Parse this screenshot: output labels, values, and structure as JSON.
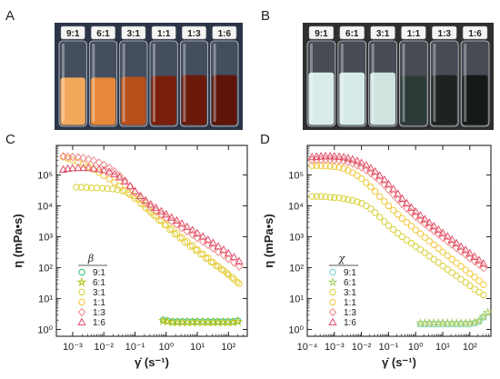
{
  "panels": {
    "A": {
      "label": "A",
      "vials": [
        {
          "label": "9:1",
          "liquid": "#f2a85a",
          "fill": 0.57
        },
        {
          "label": "6:1",
          "liquid": "#e7873a",
          "fill": 0.57
        },
        {
          "label": "3:1",
          "liquid": "#b8501c",
          "fill": 0.58
        },
        {
          "label": "1:1",
          "liquid": "#7a1f0c",
          "fill": 0.59
        },
        {
          "label": "1:3",
          "liquid": "#6b1a0a",
          "fill": 0.6
        },
        {
          "label": "1:6",
          "liquid": "#5e1508",
          "fill": 0.6
        }
      ],
      "background": "#2c3548"
    },
    "B": {
      "label": "B",
      "vials": [
        {
          "label": "9:1",
          "liquid": "#d9ecea",
          "fill": 0.63
        },
        {
          "label": "6:1",
          "liquid": "#d6ebe7",
          "fill": 0.63
        },
        {
          "label": "3:1",
          "liquid": "#cfe4de",
          "fill": 0.63
        },
        {
          "label": "1:1",
          "liquid": "#2c3a37",
          "fill": 0.59
        },
        {
          "label": "1:3",
          "liquid": "#1c2320",
          "fill": 0.6
        },
        {
          "label": "1:6",
          "liquid": "#151a18",
          "fill": 0.6
        }
      ],
      "background": "#2f2f2f"
    }
  },
  "chart_data": [
    {
      "panel": "C",
      "type": "scatter",
      "xlabel": "γ̇ (s⁻¹)",
      "ylabel": "η (mPa•s)",
      "xscale": "log",
      "yscale": "log",
      "xlim": [
        0.0003,
        400
      ],
      "ylim": [
        0.6,
        900000
      ],
      "xticks": [
        {
          "v": 0.001,
          "label": "10⁻³"
        },
        {
          "v": 0.01,
          "label": "10⁻²"
        },
        {
          "v": 0.1,
          "label": "10⁻¹"
        },
        {
          "v": 1,
          "label": "10⁰"
        },
        {
          "v": 10,
          "label": "10¹"
        },
        {
          "v": 100,
          "label": "10²"
        }
      ],
      "yticks": [
        {
          "v": 1,
          "label": "10⁰"
        },
        {
          "v": 10,
          "label": "10¹"
        },
        {
          "v": 100,
          "label": "10²"
        },
        {
          "v": 1000,
          "label": "10³"
        },
        {
          "v": 10000,
          "label": "10⁴"
        },
        {
          "v": 100000,
          "label": "10⁵"
        }
      ],
      "legend_title": "β",
      "legend_position": "lower-left",
      "series": [
        {
          "name": "9:1",
          "marker": "circle",
          "color": "#2fbf71",
          "x": [
            0.8,
            1.1,
            1.6,
            2.3,
            3.3,
            4.8,
            7,
            10,
            15,
            22,
            32,
            46,
            66,
            95,
            140,
            200
          ],
          "y": [
            2.0,
            1.9,
            1.8,
            1.8,
            1.8,
            1.8,
            1.8,
            1.8,
            1.8,
            1.8,
            1.8,
            1.8,
            1.8,
            1.8,
            1.8,
            1.9
          ]
        },
        {
          "name": "6:1",
          "marker": "star",
          "color": "#b5c41a",
          "x": [
            0.8,
            1.1,
            1.6,
            2.3,
            3.3,
            4.8,
            7,
            10,
            15,
            22,
            32,
            46,
            66,
            95,
            140,
            200
          ],
          "y": [
            1.9,
            1.8,
            1.7,
            1.7,
            1.7,
            1.7,
            1.7,
            1.7,
            1.7,
            1.7,
            1.7,
            1.7,
            1.7,
            1.7,
            1.7,
            1.8
          ]
        },
        {
          "name": "3:1",
          "marker": "circle",
          "color": "#d8d23a",
          "x": [
            0.0013,
            0.0019,
            0.0028,
            0.004,
            0.006,
            0.009,
            0.013,
            0.019,
            0.028,
            0.04,
            0.06,
            0.09,
            0.13,
            0.19,
            0.28,
            0.4,
            0.6,
            0.9,
            1.3,
            1.9,
            2.8,
            4,
            6,
            9,
            13,
            19,
            28,
            40,
            60,
            90,
            130,
            190
          ],
          "y": [
            40000,
            40000,
            39000,
            38000,
            38000,
            37000,
            36000,
            35000,
            33000,
            30000,
            26000,
            21000,
            16000,
            11000,
            7500,
            5000,
            3400,
            2400,
            1700,
            1200,
            900,
            650,
            480,
            360,
            270,
            200,
            150,
            115,
            88,
            66,
            48,
            34
          ]
        },
        {
          "name": "1:1",
          "marker": "circle",
          "color": "#f0c93a",
          "x": [
            0.0005,
            0.0007,
            0.001,
            0.0015,
            0.0022,
            0.0032,
            0.0047,
            0.007,
            0.01,
            0.015,
            0.022,
            0.032,
            0.047,
            0.07,
            0.1,
            0.15,
            0.22,
            0.32,
            0.47,
            0.7,
            1,
            1.5,
            2.2,
            3.2,
            4.7,
            7,
            10,
            15,
            22,
            32,
            47,
            70,
            100,
            150,
            220
          ],
          "y": [
            380000,
            340000,
            300000,
            260000,
            220000,
            185000,
            150000,
            120000,
            95000,
            74000,
            57000,
            43000,
            32000,
            23000,
            17000,
            12000,
            8500,
            6200,
            4500,
            3300,
            2400,
            1800,
            1300,
            950,
            700,
            520,
            380,
            280,
            205,
            150,
            110,
            80,
            58,
            42,
            30
          ]
        },
        {
          "name": "1:3",
          "marker": "diamond",
          "color": "#f08a8a",
          "x": [
            0.0005,
            0.0007,
            0.001,
            0.0015,
            0.0022,
            0.0032,
            0.0047,
            0.007,
            0.01,
            0.015,
            0.022,
            0.032,
            0.047,
            0.07,
            0.1,
            0.15,
            0.22,
            0.32,
            0.47,
            0.7,
            1,
            1.5,
            2.2,
            3.2,
            4.7,
            7,
            10,
            15,
            22,
            32,
            47,
            70,
            100,
            150,
            220
          ],
          "y": [
            400000,
            390000,
            380000,
            370000,
            350000,
            320000,
            290000,
            250000,
            210000,
            170000,
            130000,
            95000,
            65000,
            42000,
            27000,
            18000,
            12500,
            9000,
            6800,
            5200,
            4100,
            3200,
            2500,
            1950,
            1500,
            1170,
            900,
            700,
            540,
            420,
            320,
            250,
            190,
            145,
            110
          ]
        },
        {
          "name": "1:6",
          "marker": "triangle",
          "color": "#e0506a",
          "x": [
            0.0005,
            0.0007,
            0.001,
            0.0015,
            0.0022,
            0.0032,
            0.0047,
            0.007,
            0.01,
            0.015,
            0.022,
            0.032,
            0.047,
            0.07,
            0.1,
            0.15,
            0.22,
            0.32,
            0.47,
            0.7,
            1,
            1.5,
            2.2,
            3.2,
            4.7,
            7,
            10,
            15,
            22,
            32,
            47,
            70,
            100,
            150,
            220
          ],
          "y": [
            150000,
            160000,
            165000,
            170000,
            170000,
            168000,
            163000,
            155000,
            143000,
            126000,
            106000,
            84000,
            62000,
            44000,
            30000,
            21000,
            15000,
            11200,
            8600,
            6700,
            5300,
            4200,
            3350,
            2650,
            2100,
            1650,
            1300,
            1020,
            800,
            630,
            490,
            380,
            290,
            220,
            160
          ]
        }
      ]
    },
    {
      "panel": "D",
      "type": "scatter",
      "xlabel": "γ̇ (s⁻¹)",
      "ylabel": "η (mPa•s)",
      "xscale": "log",
      "yscale": "log",
      "xlim": [
        0.0001,
        600
      ],
      "ylim": [
        0.6,
        900000
      ],
      "xticks": [
        {
          "v": 0.0001,
          "label": "10⁻⁴"
        },
        {
          "v": 0.001,
          "label": "10⁻³"
        },
        {
          "v": 0.01,
          "label": "10⁻²"
        },
        {
          "v": 0.1,
          "label": "10⁻¹"
        },
        {
          "v": 1,
          "label": "10⁰"
        },
        {
          "v": 10,
          "label": "10¹"
        },
        {
          "v": 100,
          "label": "10²"
        }
      ],
      "yticks": [
        {
          "v": 1,
          "label": "10⁰"
        },
        {
          "v": 10,
          "label": "10¹"
        },
        {
          "v": 100,
          "label": "10²"
        },
        {
          "v": 1000,
          "label": "10³"
        },
        {
          "v": 10000,
          "label": "10⁴"
        },
        {
          "v": 100000,
          "label": "10⁵"
        }
      ],
      "legend_title": "χ",
      "legend_position": "lower-left",
      "series": [
        {
          "name": "9:1",
          "marker": "circle",
          "color": "#6fd3c7",
          "x": [
            1.5,
            2.2,
            3.2,
            4.7,
            7,
            10,
            15,
            22,
            32,
            47,
            70,
            100,
            150,
            220,
            320
          ],
          "y": [
            1.5,
            1.5,
            1.5,
            1.5,
            1.5,
            1.5,
            1.5,
            1.5,
            1.5,
            1.5,
            1.5,
            1.5,
            1.6,
            1.8,
            2.5
          ]
        },
        {
          "name": "6:1",
          "marker": "star",
          "color": "#a9d06a",
          "x": [
            1.5,
            2.2,
            3.2,
            4.7,
            7,
            10,
            15,
            22,
            32,
            47,
            70,
            100,
            150,
            220,
            320,
            460
          ],
          "y": [
            1.6,
            1.6,
            1.6,
            1.6,
            1.6,
            1.6,
            1.6,
            1.6,
            1.6,
            1.6,
            1.6,
            1.6,
            1.7,
            1.9,
            2.6,
            3.5
          ]
        },
        {
          "name": "3:1",
          "marker": "circle",
          "color": "#d8d23a",
          "x": [
            0.00015,
            0.00022,
            0.00032,
            0.00047,
            0.0007,
            0.001,
            0.0015,
            0.0022,
            0.0032,
            0.0047,
            0.007,
            0.01,
            0.015,
            0.022,
            0.032,
            0.047,
            0.07,
            0.1,
            0.15,
            0.22,
            0.32,
            0.47,
            0.7,
            1,
            1.5,
            2.2,
            3.2,
            4.7,
            7,
            10,
            15,
            22,
            32,
            47,
            70,
            100,
            150,
            220,
            320
          ],
          "y": [
            20000,
            20000,
            20000,
            19500,
            19000,
            18500,
            18000,
            17000,
            16000,
            15000,
            13500,
            12000,
            10000,
            8000,
            6000,
            4300,
            3100,
            2300,
            1700,
            1300,
            1000,
            780,
            610,
            480,
            380,
            300,
            235,
            185,
            145,
            113,
            88,
            69,
            54,
            42,
            33,
            26,
            20,
            16,
            13
          ]
        },
        {
          "name": "1:1",
          "marker": "circle",
          "color": "#f0c93a",
          "x": [
            0.00015,
            0.00022,
            0.00032,
            0.00047,
            0.0007,
            0.001,
            0.0015,
            0.0022,
            0.0032,
            0.0047,
            0.007,
            0.01,
            0.015,
            0.022,
            0.032,
            0.047,
            0.07,
            0.1,
            0.15,
            0.22,
            0.32,
            0.47,
            0.7,
            1,
            1.5,
            2.2,
            3.2,
            4.7,
            7,
            10,
            15,
            22,
            32,
            47,
            70,
            100,
            150,
            220,
            320
          ],
          "y": [
            200000,
            200000,
            198000,
            195000,
            190000,
            185000,
            175000,
            160000,
            140000,
            118000,
            95000,
            75000,
            56000,
            41000,
            29000,
            20000,
            14000,
            10000,
            7200,
            5300,
            3900,
            2900,
            2200,
            1650,
            1250,
            950,
            720,
            550,
            420,
            320,
            245,
            187,
            143,
            110,
            84,
            64,
            49,
            37,
            28
          ]
        },
        {
          "name": "1:3",
          "marker": "diamond",
          "color": "#f08a8a",
          "x": [
            0.00015,
            0.00022,
            0.00032,
            0.00047,
            0.0007,
            0.001,
            0.0015,
            0.0022,
            0.0032,
            0.0047,
            0.007,
            0.01,
            0.015,
            0.022,
            0.032,
            0.047,
            0.07,
            0.1,
            0.15,
            0.22,
            0.32,
            0.47,
            0.7,
            1,
            1.5,
            2.2,
            3.2,
            4.7,
            7,
            10,
            15,
            22,
            32,
            47,
            70,
            100,
            150,
            220,
            320
          ],
          "y": [
            300000,
            305000,
            310000,
            312000,
            310000,
            305000,
            295000,
            280000,
            260000,
            235000,
            205000,
            175000,
            145000,
            115000,
            88000,
            65000,
            47000,
            33000,
            23000,
            16000,
            11500,
            8300,
            6100,
            4500,
            3400,
            2600,
            2000,
            1550,
            1200,
            930,
            720,
            560,
            435,
            340,
            265,
            205,
            160,
            125,
            97
          ]
        },
        {
          "name": "1:6",
          "marker": "triangle",
          "color": "#e0506a",
          "x": [
            0.00015,
            0.00022,
            0.00032,
            0.00047,
            0.0007,
            0.001,
            0.0015,
            0.0022,
            0.0032,
            0.0047,
            0.007,
            0.01,
            0.015,
            0.022,
            0.032,
            0.047,
            0.07,
            0.1,
            0.15,
            0.22,
            0.32,
            0.47,
            0.7,
            1,
            1.5,
            2.2,
            3.2,
            4.7,
            7,
            10,
            15,
            22,
            32,
            47,
            70,
            100,
            150,
            220,
            320
          ],
          "y": [
            380000,
            390000,
            400000,
            405000,
            405000,
            400000,
            390000,
            375000,
            350000,
            320000,
            285000,
            245000,
            205000,
            165000,
            128000,
            96000,
            70000,
            50000,
            35000,
            24500,
            17200,
            12200,
            8800,
            6500,
            4900,
            3700,
            2850,
            2200,
            1700,
            1320,
            1030,
            800,
            620,
            480,
            375,
            290,
            225,
            175,
            135
          ]
        }
      ]
    }
  ]
}
